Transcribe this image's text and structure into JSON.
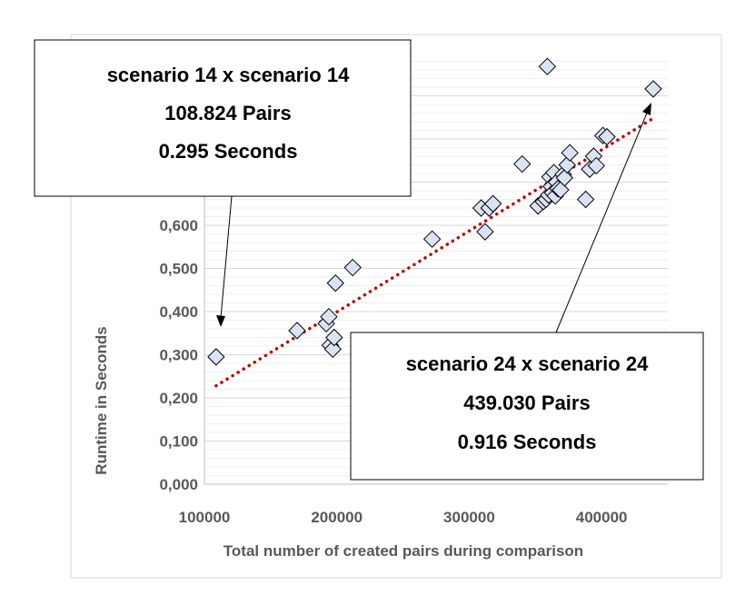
{
  "chart_data": {
    "type": "scatter",
    "xlabel": "Total number of created pairs during comparison",
    "ylabel": "Runtime in Seconds",
    "xlim": [
      100000,
      450000
    ],
    "ylim": [
      0,
      1.0
    ],
    "x_ticks": [
      {
        "value": 100000,
        "label": "100000"
      },
      {
        "value": 200000,
        "label": "200000"
      },
      {
        "value": 300000,
        "label": "300000"
      },
      {
        "value": 400000,
        "label": "400000"
      }
    ],
    "y_ticks": [
      {
        "value": 0.0,
        "label": "0,000"
      },
      {
        "value": 0.1,
        "label": "0,100"
      },
      {
        "value": 0.2,
        "label": "0,200"
      },
      {
        "value": 0.3,
        "label": "0,300"
      },
      {
        "value": 0.4,
        "label": "0,400"
      },
      {
        "value": 0.5,
        "label": "0,500"
      },
      {
        "value": 0.6,
        "label": "0,600"
      }
    ],
    "grid": "horizontal",
    "trendline": {
      "type": "linear",
      "style": "dotted",
      "color": "#C00000",
      "x": [
        108824,
        439030
      ],
      "y": [
        0.228,
        0.848
      ]
    },
    "series": [
      {
        "marker": "diamond",
        "fill": "#DAE3F3",
        "points": [
          [
            108824,
            0.295
          ],
          [
            170000,
            0.356
          ],
          [
            192000,
            0.372
          ],
          [
            194000,
            0.388
          ],
          [
            195000,
            0.322
          ],
          [
            197000,
            0.313
          ],
          [
            198000,
            0.34
          ],
          [
            199000,
            0.466
          ],
          [
            212000,
            0.502
          ],
          [
            272000,
            0.568
          ],
          [
            309000,
            0.64
          ],
          [
            312000,
            0.585
          ],
          [
            315000,
            0.64
          ],
          [
            318000,
            0.65
          ],
          [
            340000,
            0.742
          ],
          [
            352000,
            0.645
          ],
          [
            356000,
            0.655
          ],
          [
            358000,
            0.66
          ],
          [
            360000,
            0.67
          ],
          [
            361000,
            0.712
          ],
          [
            362000,
            0.69
          ],
          [
            363000,
            0.675
          ],
          [
            364000,
            0.722
          ],
          [
            365000,
            0.668
          ],
          [
            366000,
            0.7
          ],
          [
            367000,
            0.685
          ],
          [
            369000,
            0.682
          ],
          [
            371000,
            0.718
          ],
          [
            372000,
            0.71
          ],
          [
            374000,
            0.74
          ],
          [
            376000,
            0.768
          ],
          [
            388000,
            0.66
          ],
          [
            391000,
            0.73
          ],
          [
            394000,
            0.76
          ],
          [
            396000,
            0.738
          ],
          [
            401000,
            0.808
          ],
          [
            404000,
            0.805
          ],
          [
            359000,
            0.968
          ],
          [
            439030,
            0.916
          ]
        ]
      }
    ],
    "annotations": [
      {
        "lines": [
          "scenario 14 x scenario 14",
          "108.824 Pairs",
          "0.295 Seconds"
        ]
      },
      {
        "lines": [
          "scenario 24 x scenario 24",
          "439.030 Pairs",
          "0.916 Seconds"
        ]
      }
    ]
  }
}
